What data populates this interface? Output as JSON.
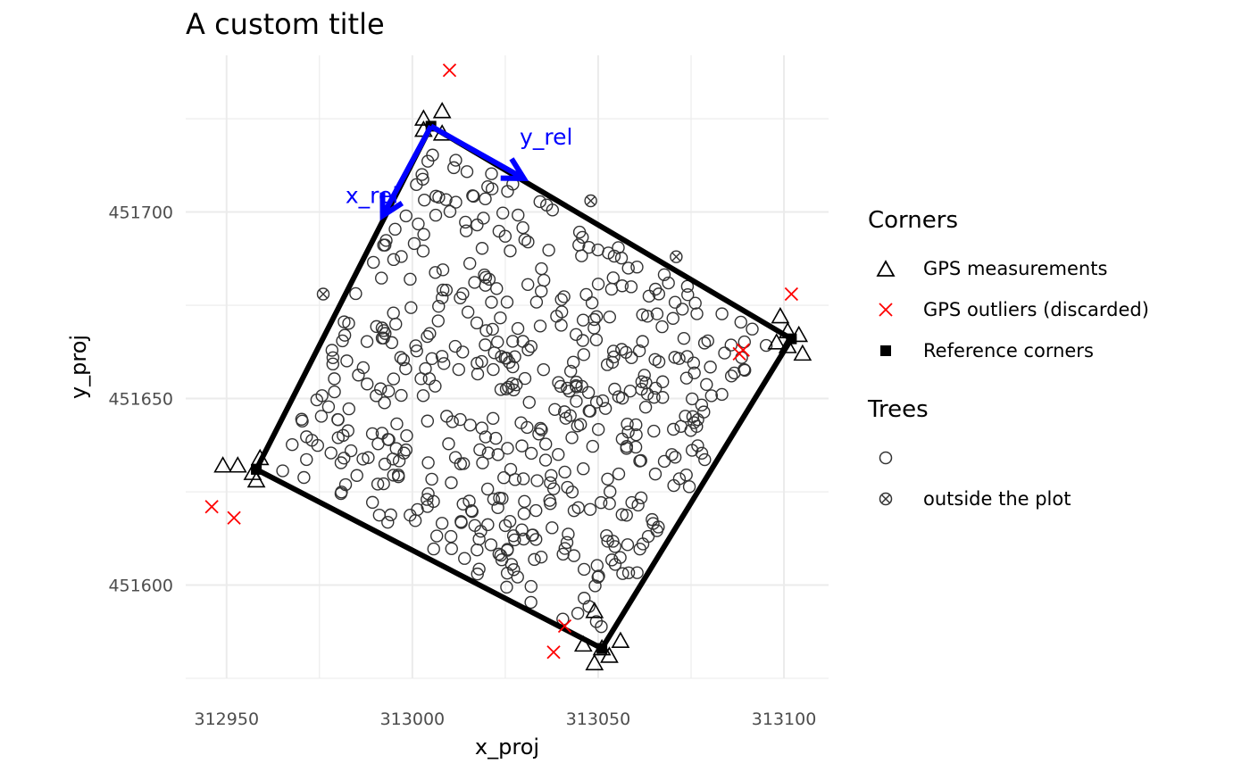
{
  "chart_data": {
    "type": "scatter",
    "title": "A custom title",
    "xlabel": "x_proj",
    "ylabel": "y_proj",
    "xlim": [
      312939,
      313112
    ],
    "ylim": [
      451575,
      451742
    ],
    "x_ticks": [
      312950,
      313000,
      313050,
      313100
    ],
    "y_ticks": [
      451600,
      451650,
      451700
    ],
    "grid": true,
    "legend_placement": "right",
    "plot_boundary": {
      "corners": [
        [
          313005,
          451723
        ],
        [
          313102,
          451666
        ],
        [
          313051,
          451583
        ],
        [
          312958,
          451631
        ],
        [
          313005,
          451723
        ]
      ]
    },
    "axis_arrows": [
      {
        "label": "x_rel",
        "from": [
          313005,
          451723
        ],
        "to": [
          312992,
          451699
        ]
      },
      {
        "label": "y_rel",
        "from": [
          313005,
          451723
        ],
        "to": [
          313030,
          451709
        ]
      }
    ],
    "gps_measurements": [
      [
        313003,
        451725
      ],
      [
        313008,
        451727
      ],
      [
        313003,
        451722
      ],
      [
        313008,
        451721
      ],
      [
        313099,
        451672
      ],
      [
        313101,
        451668
      ],
      [
        313098,
        451665
      ],
      [
        313101,
        451664
      ],
      [
        313104,
        451667
      ],
      [
        313105,
        451662
      ],
      [
        313049,
        451593
      ],
      [
        313046,
        451584
      ],
      [
        313049,
        451579
      ],
      [
        313053,
        451581
      ],
      [
        313056,
        451585
      ],
      [
        313051,
        451583
      ],
      [
        312949,
        451632
      ],
      [
        312953,
        451632
      ],
      [
        312957,
        451630
      ],
      [
        312959,
        451634
      ],
      [
        312958,
        451628
      ]
    ],
    "gps_outliers": [
      [
        313010,
        451738
      ],
      [
        313102,
        451678
      ],
      [
        313089,
        451663
      ],
      [
        313088,
        451662
      ],
      [
        313038,
        451582
      ],
      [
        313041,
        451589
      ],
      [
        312946,
        451621
      ],
      [
        312952,
        451618
      ]
    ],
    "reference_corners": [
      [
        313005,
        451723
      ],
      [
        313102,
        451666
      ],
      [
        313051,
        451583
      ],
      [
        312958,
        451631
      ]
    ],
    "trees_outside": [
      [
        312976,
        451678
      ],
      [
        313048,
        451703
      ],
      [
        313071,
        451688
      ]
    ],
    "trees_inside_count": 520,
    "colors": {
      "outlier": "#ff0000",
      "arrow": "#0000ff",
      "tree": "#333333",
      "grid": "#ebebeb",
      "boundary": "#000000"
    }
  },
  "legend": {
    "corners_title": "Corners",
    "corners_items": [
      "GPS measurements",
      "GPS outliers (discarded)",
      "Reference corners"
    ],
    "trees_title": "Trees",
    "trees_items": [
      "",
      "outside the plot"
    ]
  }
}
